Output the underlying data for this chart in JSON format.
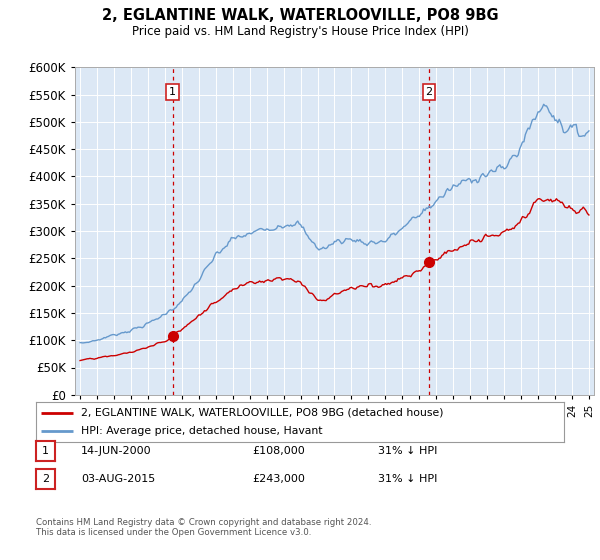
{
  "title": "2, EGLANTINE WALK, WATERLOOVILLE, PO8 9BG",
  "subtitle": "Price paid vs. HM Land Registry's House Price Index (HPI)",
  "legend_line1": "2, EGLANTINE WALK, WATERLOOVILLE, PO8 9BG (detached house)",
  "legend_line2": "HPI: Average price, detached house, Havant",
  "annotation1_date": "14-JUN-2000",
  "annotation1_price": "£108,000",
  "annotation1_hpi": "31% ↓ HPI",
  "annotation2_date": "03-AUG-2015",
  "annotation2_price": "£243,000",
  "annotation2_hpi": "31% ↓ HPI",
  "footnote": "Contains HM Land Registry data © Crown copyright and database right 2024.\nThis data is licensed under the Open Government Licence v3.0.",
  "sale1_year": 2000.45,
  "sale1_price": 108000,
  "sale2_year": 2015.58,
  "sale2_price": 243000,
  "ylim": [
    0,
    600000
  ],
  "xlim": [
    1994.7,
    2025.3
  ],
  "plot_bg_color": "#dce8f5",
  "red_line_color": "#cc0000",
  "blue_line_color": "#6699cc",
  "dashed_line_color": "#cc0000",
  "marker_color": "#cc0000",
  "box_color": "#cc2222",
  "grid_color": "#ffffff",
  "spine_color": "#aaaaaa"
}
